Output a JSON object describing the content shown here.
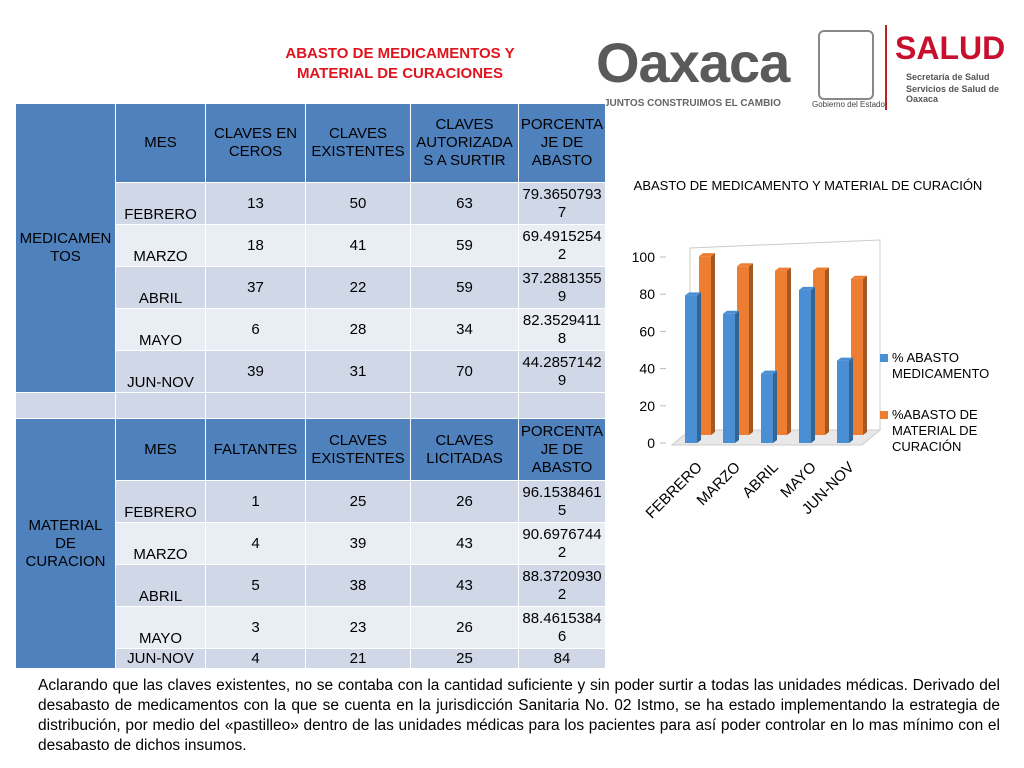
{
  "title": "ABASTO DE MEDICAMENTOS Y MATERIAL DE CURACIONES",
  "logos": {
    "oaxaca": "Oaxaca",
    "slogan": "JUNTOS CONSTRUIMOS EL CAMBIO",
    "gobierno": "Gobierno del Estado",
    "salud": "SALUD",
    "secretaria": "Secretaría de Salud",
    "servicios": "Servicios de Salud de Oaxaca"
  },
  "table": {
    "sections": [
      {
        "label": "MEDICAMENTOS",
        "header": [
          "MES",
          "CLAVES EN CEROS",
          "CLAVES EXISTENTES",
          "CLAVES AUTORIZADAS A SURTIR",
          "PORCENTAJE DE ABASTO"
        ],
        "rows": [
          [
            "FEBRERO",
            13,
            50,
            63,
            79.36507937
          ],
          [
            "MARZO",
            18,
            41,
            59,
            69.49152542
          ],
          [
            "ABRIL",
            37,
            22,
            59,
            37.28813559
          ],
          [
            "MAYO",
            6,
            28,
            34,
            82.35294118
          ],
          [
            "JUN-NOV",
            39,
            31,
            70,
            44.28571429
          ]
        ]
      },
      {
        "label": "MATERIAL DE CURACION",
        "header": [
          "MES",
          "FALTANTES",
          "CLAVES EXISTENTES",
          "CLAVES LICITADAS",
          "PORCENTAJE DE ABASTO"
        ],
        "rows": [
          [
            "FEBRERO",
            1,
            25,
            26,
            96.15384615
          ],
          [
            "MARZO",
            4,
            39,
            43,
            90.69767442
          ],
          [
            "ABRIL",
            5,
            38,
            43,
            88.37209302
          ],
          [
            "MAYO",
            3,
            23,
            26,
            88.46153846
          ],
          [
            "JUN-NOV",
            4,
            21,
            25,
            84
          ]
        ]
      }
    ]
  },
  "chart_data": {
    "type": "bar3d",
    "title": "ABASTO DE MEDICAMENTO Y MATERIAL DE CURACIÓN",
    "categories": [
      "FEBRERO",
      "MARZO",
      "ABRIL",
      "MAYO",
      "JUN-NOV"
    ],
    "series": [
      {
        "name": "% ABASTO MEDICAMENTO",
        "color": "#4a8fd4",
        "values": [
          79.37,
          69.49,
          37.29,
          82.35,
          44.29
        ]
      },
      {
        "name": "%ABASTO DE MATERIAL DE CURACIÓN",
        "color": "#ed7d31",
        "values": [
          96.15,
          90.7,
          88.37,
          88.46,
          84
        ]
      }
    ],
    "ylim": [
      0,
      100
    ],
    "yticks": [
      0,
      20,
      40,
      60,
      80,
      100
    ]
  },
  "note": "Aclarando que las claves existentes, no se contaba con la cantidad suficiente y sin poder surtir a todas las unidades médicas. Derivado del desabasto de medicamentos con la que se cuenta en la jurisdicción Sanitaria No. 02 Istmo, se ha estado implementando la estrategia de distribución, por medio del «pastilleo» dentro de las unidades médicas para los pacientes para así poder controlar en lo mas mínimo con el desabasto de dichos insumos."
}
